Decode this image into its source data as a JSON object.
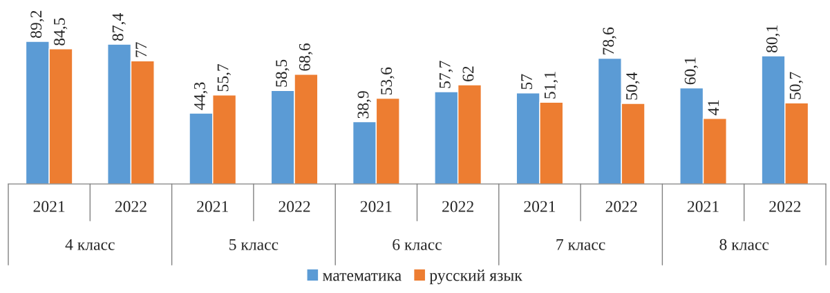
{
  "chart_data": {
    "type": "bar",
    "categories": [
      "2021",
      "2022",
      "2021",
      "2022",
      "2021",
      "2022",
      "2021",
      "2022",
      "2021",
      "2022"
    ],
    "annotations": [
      "4 класс",
      "5 класс",
      "6 класс",
      "7 класс",
      "8 класс"
    ],
    "series": [
      {
        "name": "математика",
        "color": "#5b9bd5",
        "values": [
          89.2,
          87.4,
          44.3,
          58.5,
          38.9,
          57.7,
          57,
          78.6,
          60.1,
          80.1
        ],
        "value_labels": [
          "89,2",
          "87,4",
          "44,3",
          "58,5",
          "38,9",
          "57,7",
          "57",
          "78,6",
          "60,1",
          "80,1"
        ]
      },
      {
        "name": "русский язык",
        "color": "#ed7d31",
        "values": [
          84.5,
          77,
          55.7,
          68.6,
          53.6,
          62,
          51.1,
          50.4,
          41,
          50.7
        ],
        "value_labels": [
          "84,5",
          "77",
          "55,7",
          "68,6",
          "53,6",
          "62",
          "51,1",
          "50,4",
          "41",
          "50,7"
        ]
      }
    ],
    "legend": "bottom"
  }
}
